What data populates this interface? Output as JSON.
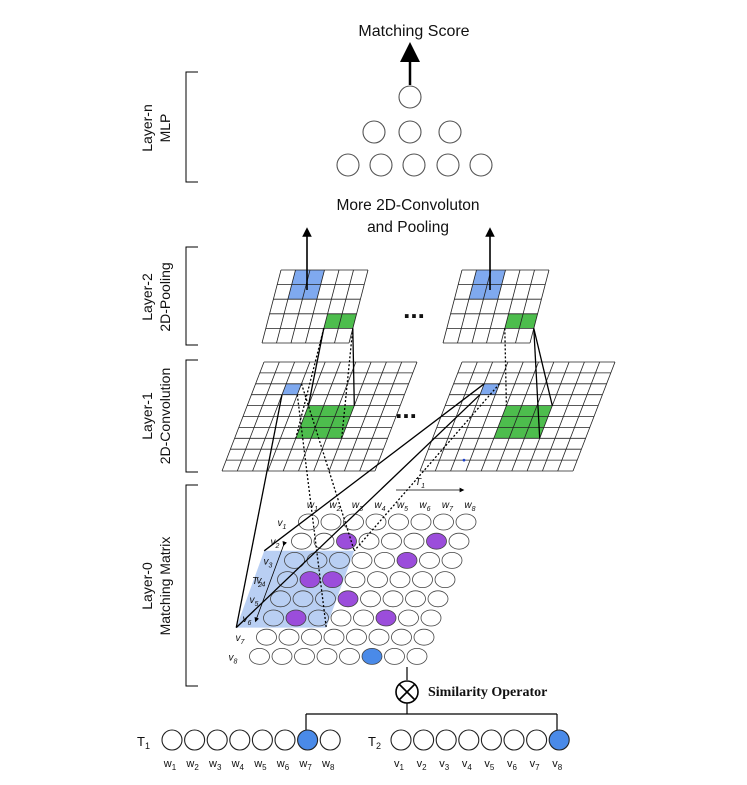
{
  "title": "Matching Score",
  "more_conv_line1": "More 2D-Convoluton",
  "more_conv_line2": "and Pooling",
  "similarity_operator": "Similarity Operator",
  "layers": {
    "layer_n": {
      "line1": "Layer-n",
      "line2": "MLP"
    },
    "layer_2": {
      "line1": "Layer-2",
      "line2": "2D-Pooling"
    },
    "layer_1": {
      "line1": "Layer-1",
      "line2": "2D-Convolution"
    },
    "layer_0": {
      "line1": "Layer-0",
      "line2": "Matching Matrix"
    }
  },
  "ellipsis": "...",
  "axis_t1": "T",
  "axis_t1_sub": "1",
  "axis_t2": "T",
  "axis_t2_sub": "2",
  "matrix_cols": [
    "w",
    "w",
    "w",
    "w",
    "w",
    "w",
    "w",
    "w"
  ],
  "matrix_col_subs": [
    "1",
    "2",
    "3",
    "4",
    "5",
    "6",
    "7",
    "8"
  ],
  "matrix_rows": [
    "v",
    "v",
    "v",
    "v",
    "v",
    "v",
    "v",
    "v"
  ],
  "matrix_row_subs": [
    "1",
    "2",
    "3",
    "4",
    "5",
    "6",
    "7",
    "8"
  ],
  "sentence_t1": {
    "label": "T",
    "sub": "1",
    "words": [
      "w",
      "w",
      "w",
      "w",
      "w",
      "w",
      "w",
      "w"
    ],
    "subs": [
      "1",
      "2",
      "3",
      "4",
      "5",
      "6",
      "7",
      "8"
    ]
  },
  "sentence_t2": {
    "label": "T",
    "sub": "2",
    "words": [
      "v",
      "v",
      "v",
      "v",
      "v",
      "v",
      "v",
      "v"
    ],
    "subs": [
      "1",
      "2",
      "3",
      "4",
      "5",
      "6",
      "7",
      "8"
    ]
  },
  "colors": {
    "purple": "#9b4ddb",
    "blue_node": "#4a8ae8",
    "light_blue": "#b9cff3",
    "pool_blue": "#7fa9ef",
    "green": "#4dbd4d"
  }
}
